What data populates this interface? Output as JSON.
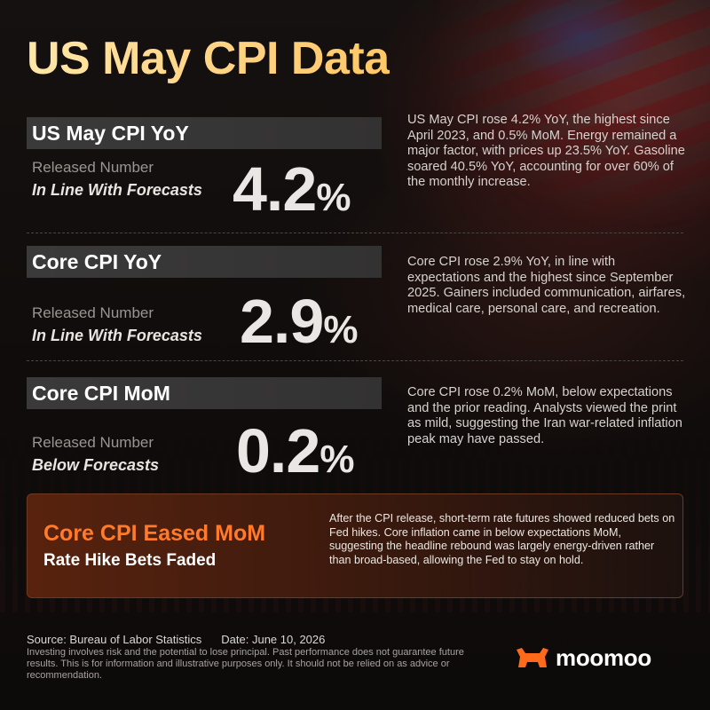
{
  "title": "US May CPI Data",
  "sections": [
    {
      "header": "US May CPI YoY",
      "released_label": "Released Number",
      "forecast": "In Line With Forecasts",
      "value": "4.2",
      "unit": "%",
      "description": "US May CPI rose 4.2% YoY, the highest since April 2023, and 0.5% MoM. Energy remained a major factor, with prices up 23.5% YoY. Gasoline soared 40.5% YoY, accounting for over 60% of the monthly increase."
    },
    {
      "header": "Core CPI YoY",
      "released_label": "Released Number",
      "forecast": "In Line With Forecasts",
      "value": "2.9",
      "unit": "%",
      "description": "Core CPI rose 2.9% YoY, in line with expectations and the highest since September 2025. Gainers included communication, airfares, medical care, personal care, and recreation."
    },
    {
      "header": "Core CPI MoM",
      "released_label": "Released Number",
      "forecast": "Below Forecasts",
      "value": "0.2",
      "unit": "%",
      "description": "Core CPI rose 0.2% MoM, below expectations and the prior reading. Analysts viewed the print as mild, suggesting the Iran war-related inflation peak may have passed."
    }
  ],
  "callout": {
    "title": "Core CPI Eased MoM",
    "subtitle": "Rate Hike Bets Faded",
    "text": "After the CPI release, short-term rate futures showed reduced bets on Fed hikes. Core inflation came in below expectations MoM, suggesting the headline rebound was largely energy-driven rather than broad-based, allowing the Fed to stay on hold."
  },
  "footer": {
    "source": "Source: Bureau of Labor Statistics",
    "date": "Date: June 10, 2026",
    "disclaimer": "Investing involves risk and the potential to lose principal. Past performance does not guarantee future results. This is for information and illustrative purposes only. It should not be relied on as advice or recommendation."
  },
  "brand": {
    "name": "moomoo",
    "logo_icon": "moomoo-bull-icon",
    "accent_color": "#ff6a1a"
  },
  "colors": {
    "title_gold": "#ffd68a",
    "callout_title": "#ff7a2a"
  }
}
